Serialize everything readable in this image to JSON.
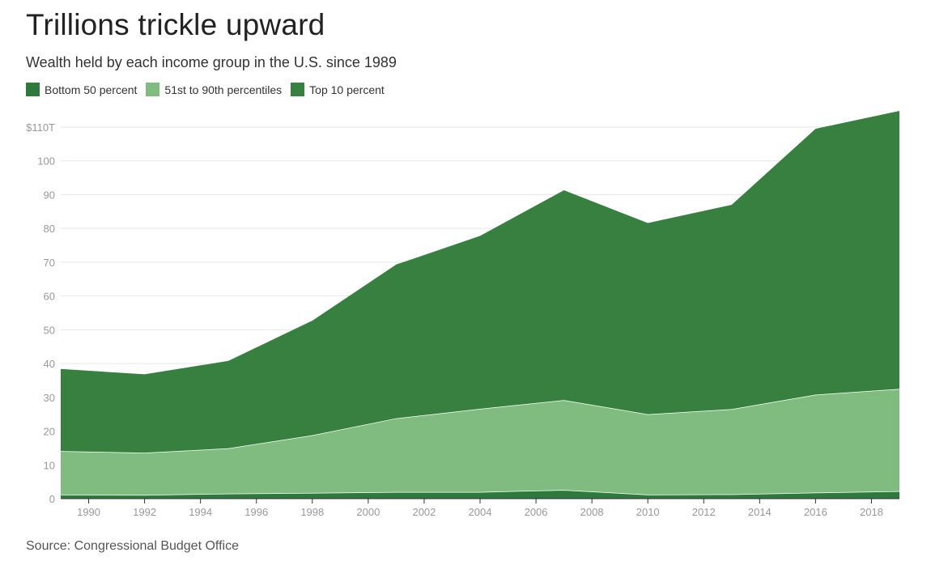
{
  "colors": {
    "bottom50": "#2e7a3e",
    "middle40": "#80bc7f",
    "top10": "#37803f",
    "gridline": "#e6e6e6",
    "axis": "#333333"
  },
  "chart_data": {
    "type": "area",
    "stacked": true,
    "title": "Trillions trickle upward",
    "subtitle": "Wealth held by each income group in the U.S. since 1989",
    "source": "Source: Congressional Budget Office",
    "legend_position": "top-left",
    "grid": true,
    "xlim": [
      1989,
      2019
    ],
    "ylim": [
      0,
      110
    ],
    "x_ticks": [
      1990,
      1992,
      1994,
      1996,
      1998,
      2000,
      2002,
      2004,
      2006,
      2008,
      2010,
      2012,
      2014,
      2016,
      2018
    ],
    "y_ticks": [
      0,
      10,
      20,
      30,
      40,
      50,
      60,
      70,
      80,
      90,
      100,
      110
    ],
    "y_tick_labels": [
      "0",
      "10",
      "20",
      "30",
      "40",
      "50",
      "60",
      "70",
      "80",
      "90",
      "100",
      "$110T"
    ],
    "x": [
      1989,
      1992,
      1995,
      1998,
      2001,
      2004,
      2007,
      2010,
      2013,
      2016,
      2019
    ],
    "series": [
      {
        "name": "Bottom 50 percent",
        "color_key": "bottom50",
        "values": [
          1.2,
          1.1,
          1.5,
          1.7,
          2.0,
          2.0,
          2.6,
          1.2,
          1.3,
          1.8,
          2.2
        ]
      },
      {
        "name": "51st to 90th percentiles",
        "color_key": "middle40",
        "values": [
          12.9,
          12.5,
          13.4,
          17.1,
          21.8,
          24.6,
          26.6,
          23.8,
          25.2,
          29.0,
          30.3
        ]
      },
      {
        "name": "Top 10 percent",
        "color_key": "top10",
        "values": [
          24.3,
          23.2,
          25.9,
          33.9,
          45.5,
          51.2,
          62.1,
          56.6,
          60.5,
          78.7,
          82.3
        ]
      }
    ]
  }
}
